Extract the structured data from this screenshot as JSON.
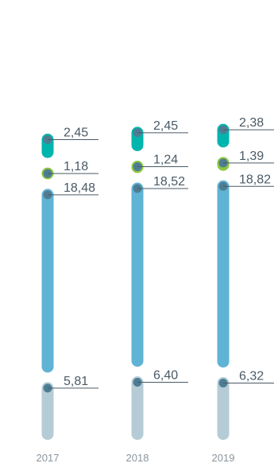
{
  "chart_data": {
    "type": "bar",
    "stacked": true,
    "categories": [
      "2017",
      "2018",
      "2019"
    ],
    "series": [
      {
        "key": "s1",
        "values": [
          5.81,
          6.4,
          6.32
        ],
        "labels": [
          "5,81",
          "6,40",
          "6,32"
        ],
        "color": "#b5ccd6"
      },
      {
        "key": "s2",
        "values": [
          18.48,
          18.52,
          18.82
        ],
        "labels": [
          "18,48",
          "18,52",
          "18,82"
        ],
        "color": "#5fb3d4"
      },
      {
        "key": "s3",
        "values": [
          1.18,
          1.24,
          1.39
        ],
        "labels": [
          "1,18",
          "1,24",
          "1,39"
        ],
        "color": "#8cc63f"
      },
      {
        "key": "s4",
        "values": [
          2.45,
          2.45,
          2.38
        ],
        "labels": [
          "2,45",
          "2,45",
          "2,38"
        ],
        "color": "#00b5ad"
      }
    ],
    "marker_color": "#4e7d93",
    "leader_color": "#4a5a66",
    "title": "",
    "xlabel": "",
    "ylabel": ""
  }
}
